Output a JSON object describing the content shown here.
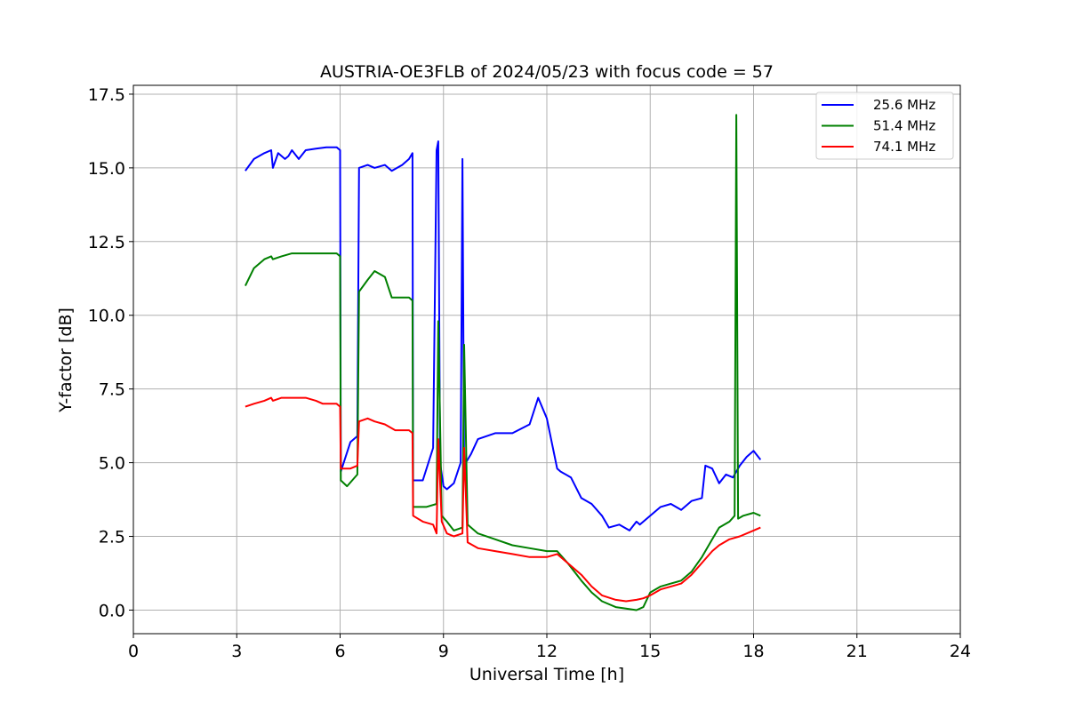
{
  "chart_data": {
    "type": "line",
    "title": "AUSTRIA-OE3FLB of 2024/05/23 with focus code = 57",
    "xlabel": "Universal Time [h]",
    "ylabel": "Y-factor [dB]",
    "xlim": [
      0,
      24
    ],
    "ylim": [
      -0.8,
      17.8
    ],
    "xticks": [
      0,
      3,
      6,
      9,
      12,
      15,
      18,
      21,
      24
    ],
    "xtick_labels": [
      "0",
      "3",
      "6",
      "9",
      "12",
      "15",
      "18",
      "21",
      "24"
    ],
    "yticks": [
      0,
      2.5,
      5,
      7.5,
      10,
      12.5,
      15,
      17.5
    ],
    "ytick_labels": [
      "0.0",
      "2.5",
      "5.0",
      "7.5",
      "10.0",
      "12.5",
      "15.0",
      "17.5"
    ],
    "grid": true,
    "legend_position": "top-right",
    "series": [
      {
        "name": "25.6 MHz",
        "color": "#0000ff",
        "x": [
          3.25,
          3.5,
          3.8,
          4.0,
          4.05,
          4.2,
          4.4,
          4.5,
          4.6,
          4.8,
          5.0,
          5.3,
          5.6,
          5.9,
          6.0,
          6.02,
          6.3,
          6.5,
          6.55,
          6.8,
          7.0,
          7.3,
          7.5,
          7.8,
          8.0,
          8.1,
          8.12,
          8.4,
          8.7,
          8.8,
          8.85,
          8.9,
          9.0,
          9.1,
          9.3,
          9.5,
          9.55,
          9.6,
          9.65,
          9.8,
          10.0,
          10.5,
          11.0,
          11.5,
          11.75,
          12.0,
          12.3,
          12.4,
          12.7,
          13.0,
          13.3,
          13.6,
          13.8,
          14.1,
          14.4,
          14.6,
          14.7,
          15.0,
          15.3,
          15.6,
          15.9,
          16.2,
          16.5,
          16.6,
          16.8,
          17.0,
          17.2,
          17.4,
          17.6,
          17.8,
          18.0,
          18.2
        ],
        "y": [
          14.9,
          15.3,
          15.5,
          15.6,
          15.0,
          15.5,
          15.3,
          15.4,
          15.6,
          15.3,
          15.6,
          15.65,
          15.7,
          15.7,
          15.6,
          4.7,
          5.7,
          5.9,
          15.0,
          15.1,
          15.0,
          15.1,
          14.9,
          15.1,
          15.3,
          15.5,
          4.4,
          4.4,
          5.5,
          15.6,
          15.9,
          5.0,
          4.2,
          4.1,
          4.3,
          5.0,
          15.3,
          4.5,
          5.0,
          5.3,
          5.8,
          6.0,
          6.0,
          6.3,
          7.2,
          6.5,
          4.8,
          4.7,
          4.5,
          3.8,
          3.6,
          3.2,
          2.8,
          2.9,
          2.7,
          3.0,
          2.9,
          3.2,
          3.5,
          3.6,
          3.4,
          3.7,
          3.8,
          4.9,
          4.8,
          4.3,
          4.6,
          4.5,
          4.9,
          5.2,
          5.4,
          5.1
        ]
      },
      {
        "name": "51.4 MHz",
        "color": "#008000",
        "x": [
          3.25,
          3.5,
          3.8,
          4.0,
          4.05,
          4.3,
          4.6,
          5.0,
          5.5,
          5.9,
          6.0,
          6.02,
          6.2,
          6.5,
          6.55,
          6.8,
          7.0,
          7.3,
          7.5,
          7.7,
          8.0,
          8.1,
          8.12,
          8.5,
          8.8,
          8.85,
          8.95,
          9.1,
          9.3,
          9.55,
          9.6,
          9.7,
          10.0,
          10.5,
          11.0,
          11.5,
          12.0,
          12.3,
          12.6,
          13.0,
          13.3,
          13.6,
          14.0,
          14.3,
          14.6,
          14.8,
          15.0,
          15.3,
          15.6,
          15.9,
          16.2,
          16.5,
          16.8,
          17.0,
          17.3,
          17.45,
          17.5,
          17.55,
          17.7,
          18.0,
          18.2
        ],
        "y": [
          11.0,
          11.6,
          11.9,
          12.0,
          11.9,
          12.0,
          12.1,
          12.1,
          12.1,
          12.1,
          12.0,
          4.4,
          4.2,
          4.6,
          10.8,
          11.2,
          11.5,
          11.3,
          10.6,
          10.6,
          10.6,
          10.5,
          3.5,
          3.5,
          3.6,
          9.8,
          3.2,
          3.0,
          2.7,
          2.8,
          9.0,
          2.9,
          2.6,
          2.4,
          2.2,
          2.1,
          2.0,
          2.0,
          1.6,
          1.0,
          0.6,
          0.3,
          0.1,
          0.05,
          0.0,
          0.1,
          0.6,
          0.8,
          0.9,
          1.0,
          1.3,
          1.8,
          2.4,
          2.8,
          3.0,
          3.2,
          16.8,
          3.1,
          3.2,
          3.3,
          3.2
        ]
      },
      {
        "name": "74.1 MHz",
        "color": "#ff0000",
        "x": [
          3.25,
          3.5,
          3.8,
          4.0,
          4.05,
          4.3,
          4.6,
          5.0,
          5.3,
          5.5,
          5.9,
          6.0,
          6.02,
          6.3,
          6.5,
          6.55,
          6.8,
          7.0,
          7.3,
          7.6,
          8.0,
          8.1,
          8.12,
          8.4,
          8.7,
          8.8,
          8.85,
          8.95,
          9.1,
          9.3,
          9.55,
          9.6,
          9.7,
          10.0,
          10.5,
          11.0,
          11.5,
          12.0,
          12.3,
          12.6,
          13.0,
          13.3,
          13.6,
          14.0,
          14.3,
          14.6,
          14.8,
          15.0,
          15.3,
          15.6,
          15.9,
          16.2,
          16.5,
          16.8,
          17.0,
          17.3,
          17.6,
          18.0,
          18.2
        ],
        "y": [
          6.9,
          7.0,
          7.1,
          7.2,
          7.1,
          7.2,
          7.2,
          7.2,
          7.1,
          7.0,
          7.0,
          6.9,
          4.8,
          4.8,
          4.9,
          6.4,
          6.5,
          6.4,
          6.3,
          6.1,
          6.1,
          6.0,
          3.2,
          3.0,
          2.9,
          2.6,
          5.8,
          3.0,
          2.6,
          2.5,
          2.6,
          5.5,
          2.3,
          2.1,
          2.0,
          1.9,
          1.8,
          1.8,
          1.9,
          1.6,
          1.2,
          0.8,
          0.5,
          0.35,
          0.3,
          0.35,
          0.4,
          0.5,
          0.7,
          0.8,
          0.9,
          1.2,
          1.6,
          2.0,
          2.2,
          2.4,
          2.5,
          2.7,
          2.8
        ]
      }
    ]
  }
}
